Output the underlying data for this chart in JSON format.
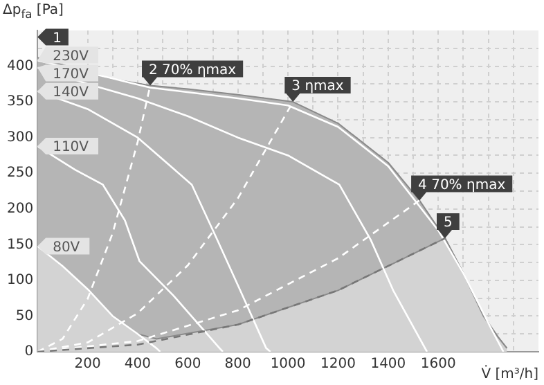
{
  "chart_data": {
    "type": "line",
    "xlabel": "V̇ [m³/h]",
    "ylabel": "Δp$_{fa}$ [Pa]",
    "xlim": [
      0,
      2000
    ],
    "ylim": [
      0,
      450
    ],
    "xticks": [
      {
        "value": 100,
        "label": null
      },
      200,
      {
        "value": 300,
        "label": null
      },
      400,
      {
        "value": 500,
        "label": null
      },
      600,
      {
        "value": 700,
        "label": null
      },
      800,
      {
        "value": 900,
        "label": null
      },
      1000,
      {
        "value": 1100,
        "label": null
      },
      1200,
      {
        "value": 1300,
        "label": null
      },
      1400,
      {
        "value": 1500,
        "label": null
      },
      1600,
      {
        "value": 1700,
        "label": null
      },
      {
        "value": 1800,
        "label": null
      },
      {
        "value": 1900,
        "label": null
      }
    ],
    "yticks": [
      0,
      {
        "value": 25,
        "label": null
      },
      50,
      {
        "value": 75,
        "label": null
      },
      100,
      {
        "value": 125,
        "label": null
      },
      150,
      {
        "value": 175,
        "label": null
      },
      200,
      {
        "value": 225,
        "label": null
      },
      250,
      {
        "value": 275,
        "label": null
      },
      300,
      {
        "value": 325,
        "label": null
      },
      350,
      {
        "value": 375,
        "label": null
      },
      400,
      {
        "value": 425,
        "label": null
      }
    ],
    "grid": true,
    "legend": false,
    "marker": "none",
    "series": [
      {
        "type": "area",
        "color": "#b5b5b5",
        "x": [
          0,
          300,
          450,
          600,
          800,
          1020,
          1200,
          1400,
          1525,
          1627,
          1700,
          1780,
          1840,
          1874
        ],
        "values": [
          412,
          382,
          373,
          368,
          360,
          350,
          320,
          265,
          212,
          159,
          110,
          50,
          20,
          5
        ]
      },
      {
        "type": "area",
        "color": "#d3d3d3",
        "x": [
          0,
          100,
          205,
          300,
          400,
          475,
          800,
          1200,
          1627,
          1700,
          1780,
          1840,
          1874
        ],
        "values": [
          148,
          120,
          86,
          50,
          25,
          18,
          38,
          86,
          159,
          110,
          50,
          20,
          5
        ]
      },
      {
        "name": "230V",
        "color": "#ffffff",
        "line_style": "solid",
        "x": [
          0,
          450,
          800,
          1000,
          1200,
          1400,
          1600,
          1700,
          1800,
          1860
        ],
        "values": [
          408,
          370,
          355,
          345,
          315,
          260,
          170,
          110,
          40,
          0
        ]
      },
      {
        "name": "170V",
        "color": "#ffffff",
        "line_style": "solid",
        "x": [
          0,
          200,
          400,
          600,
          800,
          1000,
          1205,
          1330,
          1420,
          1555
        ],
        "values": [
          398,
          375,
          355,
          330,
          300,
          275,
          234,
          157,
          86,
          0
        ]
      },
      {
        "name": "140V",
        "color": "#ffffff",
        "line_style": "solid",
        "x": [
          0,
          200,
          400,
          616,
          711,
          803,
          913,
          930
        ],
        "values": [
          365,
          340,
          300,
          234,
          162,
          91,
          5,
          0
        ]
      },
      {
        "name": "110V",
        "color": "#ffffff",
        "line_style": "solid",
        "x": [
          0,
          150,
          261,
          349,
          407,
          542,
          727,
          740
        ],
        "values": [
          288,
          255,
          234,
          184,
          127,
          79,
          5,
          0
        ]
      },
      {
        "name": "80V",
        "color": "#ffffff",
        "line_style": "solid",
        "x": [
          0,
          100,
          205,
          300,
          400,
          475,
          490
        ],
        "values": [
          148,
          120,
          86,
          50,
          25,
          5,
          0
        ]
      },
      {
        "color": "#ffffff",
        "line_style": "dashed",
        "x": [
          0,
          100,
          200,
          300,
          400,
          450
        ],
        "values": [
          0,
          18,
          74,
          166,
          294,
          373
        ]
      },
      {
        "color": "#ffffff",
        "line_style": "dashed",
        "x": [
          0,
          200,
          400,
          600,
          800,
          1020
        ],
        "values": [
          0,
          13,
          54,
          121,
          215,
          350
        ]
      },
      {
        "color": "#ffffff",
        "line_style": "dashed",
        "x": [
          0,
          400,
          800,
          1200,
          1525
        ],
        "values": [
          0,
          15,
          58,
          131,
          212
        ]
      },
      {
        "color": "#777777",
        "line_style": "dashed",
        "x": [
          0,
          400,
          800,
          1200,
          1627
        ],
        "values": [
          0,
          10,
          38,
          86,
          159
        ]
      }
    ],
    "annotations": [
      {
        "text": "1",
        "x": 0,
        "y": 412
      },
      {
        "text": "2 70% ηmax",
        "x": 450,
        "y": 373
      },
      {
        "text": "3 ηmax",
        "x": 1020,
        "y": 350
      },
      {
        "text": "4 70% ηmax",
        "x": 1525,
        "y": 212
      },
      {
        "text": "5",
        "x": 1627,
        "y": 159
      }
    ]
  }
}
